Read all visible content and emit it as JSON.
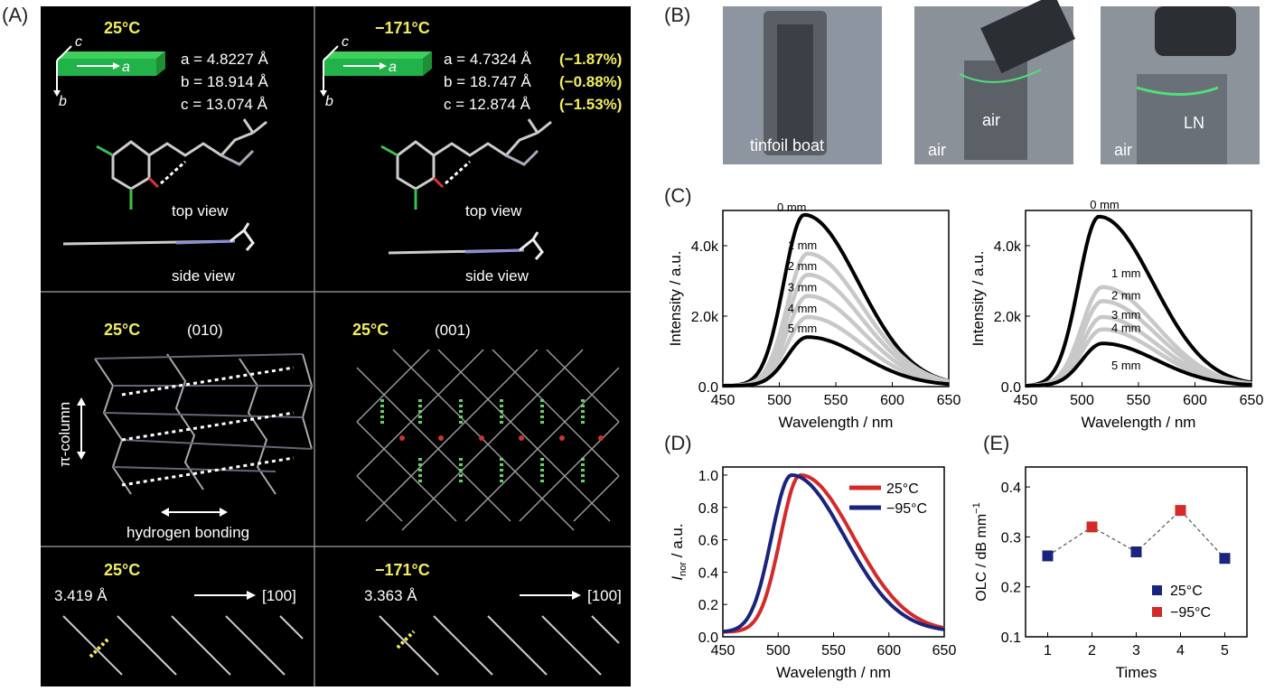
{
  "panel_labels": {
    "A": "(A)",
    "B": "(B)",
    "C": "(C)",
    "D": "(D)",
    "E": "(E)"
  },
  "panelA": {
    "r1c1": {
      "temp": "25°C",
      "a": "a = 4.8227 Å",
      "b": "b = 18.914 Å",
      "c": "c = 13.074 Å",
      "axis_a": "a",
      "axis_b": "b",
      "axis_c": "c",
      "top": "top view",
      "side": "side view"
    },
    "r1c2": {
      "temp": "−171°C",
      "a": "a = 4.7324 Å",
      "a_pct": "(−1.87%)",
      "b": "b = 18.747 Å",
      "b_pct": "(−0.88%)",
      "c": "c = 12.874 Å",
      "c_pct": "(−1.53%)",
      "axis_a": "a",
      "axis_b": "b",
      "axis_c": "c",
      "top": "top view",
      "side": "side view"
    },
    "r2c1": {
      "temp": "25°C",
      "plane": "(010)",
      "pi": "π-column",
      "hb": "hydrogen bonding"
    },
    "r2c2": {
      "temp": "25°C",
      "plane": "(001)"
    },
    "r3c1": {
      "temp": "25°C",
      "dist": "3.419 Å",
      "dir": "[100]"
    },
    "r3c2": {
      "temp": "−171°C",
      "dist": "3.363 Å",
      "dir": "[100]"
    }
  },
  "panelB": {
    "p1": "tinfoil boat",
    "p2a": "air",
    "p2b": "air",
    "p3a": "air",
    "p3b": "LN"
  },
  "panelC": [
    {
      "chart_data": {
        "type": "line",
        "xlabel": "Wavelength / nm",
        "ylabel": "Intensity / a.u.",
        "xlim": [
          450,
          650
        ],
        "ylim": [
          0,
          5000
        ],
        "xticks": [
          "450",
          "500",
          "550",
          "600",
          "650"
        ],
        "yticks": [
          "0.0",
          "2.0k",
          "4.0k"
        ],
        "series": [
          {
            "name": "0 mm",
            "peak_wavelength": 522,
            "peak": 4850
          },
          {
            "name": "1 mm",
            "peak_wavelength": 525,
            "peak": 3750
          },
          {
            "name": "2 mm",
            "peak_wavelength": 525,
            "peak": 3150
          },
          {
            "name": "3 mm",
            "peak_wavelength": 525,
            "peak": 2550
          },
          {
            "name": "4 mm",
            "peak_wavelength": 525,
            "peak": 1950
          },
          {
            "name": "5 mm",
            "peak_wavelength": 525,
            "peak": 1380
          }
        ]
      }
    },
    {
      "chart_data": {
        "type": "line",
        "xlabel": "Wavelength / nm",
        "ylabel": "Intensity / a.u.",
        "xlim": [
          450,
          650
        ],
        "ylim": [
          0,
          5000
        ],
        "xticks": [
          "450",
          "500",
          "550",
          "600",
          "650"
        ],
        "yticks": [
          "0.0",
          "2.0k",
          "4.0k"
        ],
        "series": [
          {
            "name": "0 mm",
            "peak_wavelength": 515,
            "peak": 4800
          },
          {
            "name": "1 mm",
            "peak_wavelength": 518,
            "peak": 2800
          },
          {
            "name": "2 mm",
            "peak_wavelength": 518,
            "peak": 2400
          },
          {
            "name": "3 mm",
            "peak_wavelength": 518,
            "peak": 1950
          },
          {
            "name": "4 mm",
            "peak_wavelength": 518,
            "peak": 1600
          },
          {
            "name": "5 mm",
            "peak_wavelength": 518,
            "peak": 1200
          }
        ]
      }
    }
  ],
  "panelD": {
    "chart_data": {
      "type": "line",
      "xlabel": "Wavelength / nm",
      "ylabel_main": "I",
      "ylabel_sub": "nor",
      "ylabel_rest": " / a.u.",
      "xlim": [
        450,
        650
      ],
      "ylim": [
        0,
        1.05
      ],
      "xticks": [
        "450",
        "500",
        "550",
        "600",
        "650"
      ],
      "yticks": [
        "0.0",
        "0.2",
        "0.4",
        "0.6",
        "0.8",
        "1.0"
      ],
      "series": [
        {
          "name": "25°C",
          "color": "#d42a2a",
          "peak_wavelength": 520
        },
        {
          "name": "−95°C",
          "color": "#1a237e",
          "peak_wavelength": 512
        }
      ]
    }
  },
  "panelE": {
    "chart_data": {
      "type": "scatter",
      "xlabel": "Times",
      "ylabel": "OLC / dB mm",
      "ylabel_sup": "−1",
      "xlim": [
        0.5,
        5.5
      ],
      "ylim": [
        0.1,
        0.44
      ],
      "xticks": [
        "1",
        "2",
        "3",
        "4",
        "5"
      ],
      "yticks": [
        "0.1",
        "0.2",
        "0.3",
        "0.4"
      ],
      "x": [
        1,
        2,
        3,
        4,
        5
      ],
      "y": [
        0.262,
        0.32,
        0.27,
        0.353,
        0.257
      ],
      "colors": [
        "#1a237e",
        "#d42a2a",
        "#1a237e",
        "#d42a2a",
        "#1a237e"
      ],
      "legend": [
        {
          "name": "25°C",
          "color": "#1a237e"
        },
        {
          "name": "−95°C",
          "color": "#d42a2a"
        }
      ]
    }
  }
}
